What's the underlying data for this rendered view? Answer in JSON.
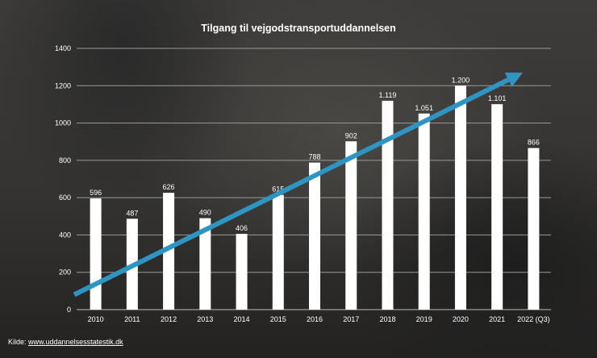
{
  "chart_data": {
    "type": "bar",
    "title": "Tilgang til vejgodstransportuddannelsen",
    "xlabel": "",
    "ylabel": "",
    "ylim": [
      0,
      1400
    ],
    "yticks": [
      0,
      200,
      400,
      600,
      800,
      1000,
      1200,
      1400
    ],
    "grid": true,
    "categories": [
      "2010",
      "2011",
      "2012",
      "2013",
      "2014",
      "2015",
      "2016",
      "2017",
      "2018",
      "2019",
      "2020",
      "2021",
      "2022 (Q3)"
    ],
    "values": [
      596,
      487,
      626,
      490,
      406,
      615,
      788,
      902,
      1119,
      1051,
      1200,
      1101,
      866
    ],
    "value_labels": [
      "596",
      "487",
      "626",
      "490",
      "406",
      "615",
      "788",
      "902",
      "1.119",
      "1.051",
      "1.200",
      "1.101",
      "866"
    ],
    "annotations": [
      {
        "type": "trend-arrow",
        "color": "#2e95c2",
        "from": [
          2010,
          80
        ],
        "to": [
          2022,
          1270
        ]
      }
    ],
    "bar_color": "#ffffff"
  },
  "source": {
    "label": "Kilde:",
    "link": "www.uddannelsesstatestik.dk"
  }
}
